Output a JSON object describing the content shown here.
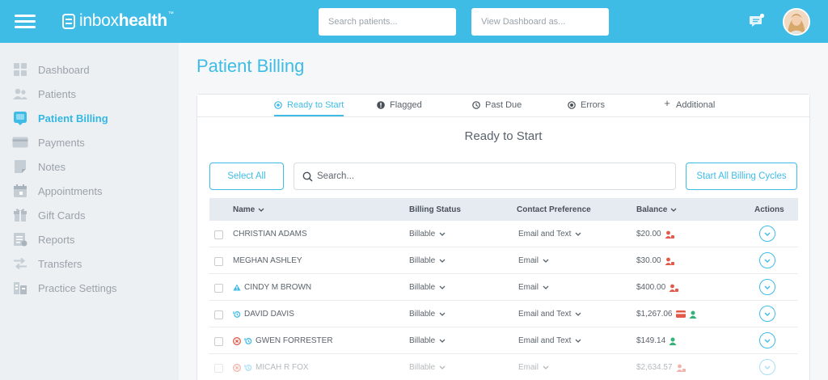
{
  "header": {
    "logo_regular": "inbox",
    "logo_bold": "health",
    "logo_tm": "™",
    "search_placeholder": "Search patients...",
    "view_placeholder": "View Dashboard as..."
  },
  "sidebar": {
    "items": [
      {
        "label": "Dashboard",
        "icon": "dashboard-icon"
      },
      {
        "label": "Patients",
        "icon": "patients-icon"
      },
      {
        "label": "Patient Billing",
        "icon": "billing-icon",
        "active": true
      },
      {
        "label": "Payments",
        "icon": "card-icon"
      },
      {
        "label": "Notes",
        "icon": "note-icon"
      },
      {
        "label": "Appointments",
        "icon": "calendar-icon"
      },
      {
        "label": "Gift Cards",
        "icon": "gift-icon"
      },
      {
        "label": "Reports",
        "icon": "report-icon"
      },
      {
        "label": "Transfers",
        "icon": "transfer-icon"
      },
      {
        "label": "Practice Settings",
        "icon": "building-icon"
      }
    ]
  },
  "main": {
    "title": "Patient Billing",
    "tabs": [
      {
        "label": "Ready to Start",
        "icon": "target-icon",
        "active": true
      },
      {
        "label": "Flagged",
        "icon": "alert-icon"
      },
      {
        "label": "Past Due",
        "icon": "clock-icon"
      },
      {
        "label": "Errors",
        "icon": "error-icon"
      },
      {
        "label": "Additional",
        "icon": "plus-icon"
      }
    ],
    "section_title": "Ready to Start",
    "select_all_label": "Select All",
    "search_placeholder": "Search...",
    "start_all_label": "Start All Billing Cycles"
  },
  "table": {
    "columns": {
      "name": "Name",
      "billing_status": "Billing Status",
      "contact_preference": "Contact Preference",
      "balance": "Balance",
      "actions": "Actions"
    },
    "rows": [
      {
        "name": "CHRISTIAN ADAMS",
        "status": "Billable",
        "contact": "Email and Text",
        "balance": "$20.00",
        "pre_icons": [],
        "balance_icons": [
          "user-alert-icon"
        ]
      },
      {
        "name": "MEGHAN ASHLEY",
        "status": "Billable",
        "contact": "Email",
        "balance": "$30.00",
        "pre_icons": [],
        "balance_icons": [
          "user-alert-icon"
        ]
      },
      {
        "name": "CINDY M BROWN",
        "status": "Billable",
        "contact": "Email",
        "balance": "$400.00",
        "pre_icons": [
          "warning-icon"
        ],
        "balance_icons": [
          "user-alert-icon"
        ]
      },
      {
        "name": "DAVID DAVIS",
        "status": "Billable",
        "contact": "Email and Text",
        "balance": "$1,267.06",
        "pre_icons": [
          "history-icon"
        ],
        "balance_icons": [
          "card-alert-icon",
          "user-ok-icon"
        ]
      },
      {
        "name": "GWEN FORRESTER",
        "status": "Billable",
        "contact": "Email and Text",
        "balance": "$149.14",
        "pre_icons": [
          "error-icon",
          "history-icon"
        ],
        "balance_icons": [
          "user-ok-icon"
        ]
      },
      {
        "name": "MICAH R FOX",
        "status": "Billable",
        "contact": "Email",
        "balance": "$2,634.57",
        "pre_icons": [
          "error-icon",
          "history-icon"
        ],
        "balance_icons": [
          "user-alert-icon"
        ]
      }
    ]
  },
  "colors": {
    "accent": "#3fbce6",
    "alert_red": "#e25a4a",
    "ok_green": "#35b27a",
    "sidebar_bg": "#edf0f3"
  }
}
